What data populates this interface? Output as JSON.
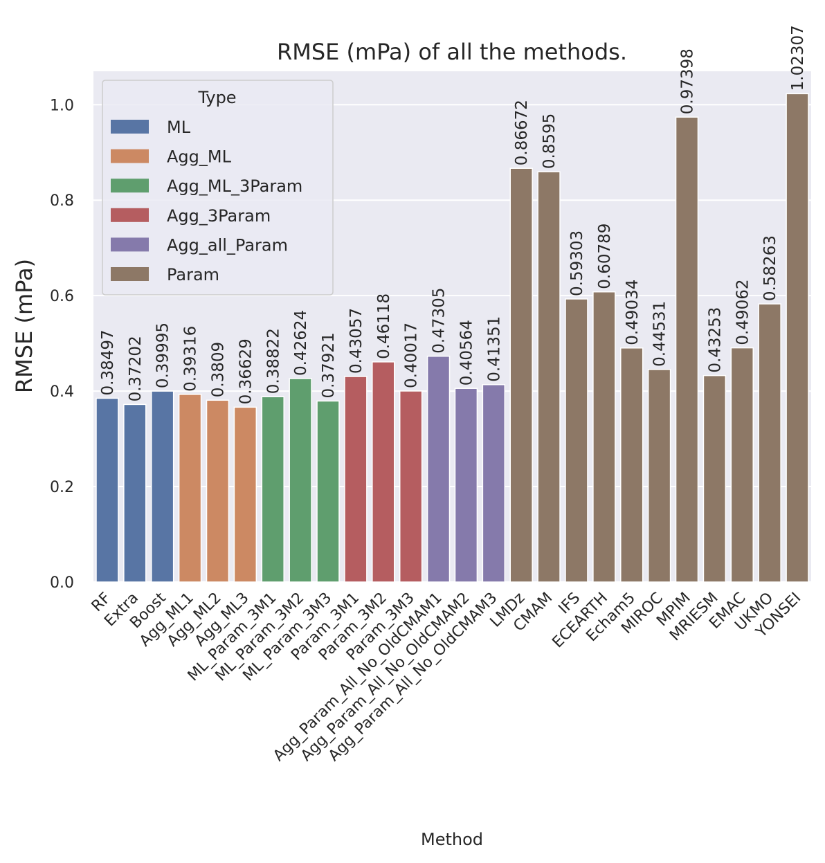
{
  "chart_data": {
    "type": "bar",
    "title": "RMSE (mPa) of all the methods.",
    "xlabel": "Method",
    "ylabel": "RMSE (mPa)",
    "ylim": [
      0,
      1.07
    ],
    "yticks": [
      0.0,
      0.2,
      0.4,
      0.6,
      0.8,
      1.0
    ],
    "ytick_labels": [
      "0.0",
      "0.2",
      "0.4",
      "0.6",
      "0.8",
      "1.0"
    ],
    "grid": true,
    "legend": {
      "title": "Type",
      "placement": "upper-left",
      "entries": [
        {
          "name": "ML",
          "color": "#5875a4"
        },
        {
          "name": "Agg_ML",
          "color": "#cc8963"
        },
        {
          "name": "Agg_ML_3Param",
          "color": "#5f9e6e"
        },
        {
          "name": "Agg_3Param",
          "color": "#b55d60"
        },
        {
          "name": "Agg_all_Param",
          "color": "#857aab"
        },
        {
          "name": "Param",
          "color": "#8d7866"
        }
      ]
    },
    "bars": [
      {
        "category": "RF",
        "value": 0.38497,
        "label": "0.38497",
        "type": "ML"
      },
      {
        "category": "Extra",
        "value": 0.37202,
        "label": "0.37202",
        "type": "ML"
      },
      {
        "category": "Boost",
        "value": 0.39995,
        "label": "0.39995",
        "type": "ML"
      },
      {
        "category": "Agg_ML1",
        "value": 0.39316,
        "label": "0.39316",
        "type": "Agg_ML"
      },
      {
        "category": "Agg_ML2",
        "value": 0.3809,
        "label": "0.3809",
        "type": "Agg_ML"
      },
      {
        "category": "Agg_ML3",
        "value": 0.36629,
        "label": "0.36629",
        "type": "Agg_ML"
      },
      {
        "category": "ML_Param_3M1",
        "value": 0.38822,
        "label": "0.38822",
        "type": "Agg_ML_3Param"
      },
      {
        "category": "ML_Param_3M2",
        "value": 0.42624,
        "label": "0.42624",
        "type": "Agg_ML_3Param"
      },
      {
        "category": "ML_Param_3M3",
        "value": 0.37921,
        "label": "0.37921",
        "type": "Agg_ML_3Param"
      },
      {
        "category": "Param_3M1",
        "value": 0.43057,
        "label": "0.43057",
        "type": "Agg_3Param"
      },
      {
        "category": "Param_3M2",
        "value": 0.46118,
        "label": "0.46118",
        "type": "Agg_3Param"
      },
      {
        "category": "Param_3M3",
        "value": 0.40017,
        "label": "0.40017",
        "type": "Agg_3Param"
      },
      {
        "category": "Agg_Param_All_No_OldCMAM1",
        "value": 0.47305,
        "label": "0.47305",
        "type": "Agg_all_Param"
      },
      {
        "category": "Agg_Param_All_No_OldCMAM2",
        "value": 0.40564,
        "label": "0.40564",
        "type": "Agg_all_Param"
      },
      {
        "category": "Agg_Param_All_No_OldCMAM3",
        "value": 0.41351,
        "label": "0.41351",
        "type": "Agg_all_Param"
      },
      {
        "category": "LMDz",
        "value": 0.86672,
        "label": "0.86672",
        "type": "Param"
      },
      {
        "category": "CMAM",
        "value": 0.8595,
        "label": "0.8595",
        "type": "Param"
      },
      {
        "category": "IFS",
        "value": 0.59303,
        "label": "0.59303",
        "type": "Param"
      },
      {
        "category": "ECEARTH",
        "value": 0.60789,
        "label": "0.60789",
        "type": "Param"
      },
      {
        "category": "Echam5",
        "value": 0.49034,
        "label": "0.49034",
        "type": "Param"
      },
      {
        "category": "MIROC",
        "value": 0.44531,
        "label": "0.44531",
        "type": "Param"
      },
      {
        "category": "MPIM",
        "value": 0.97398,
        "label": "0.97398",
        "type": "Param"
      },
      {
        "category": "MRIESM",
        "value": 0.43253,
        "label": "0.43253",
        "type": "Param"
      },
      {
        "category": "EMAC",
        "value": 0.49062,
        "label": "0.49062",
        "type": "Param"
      },
      {
        "category": "UKMO",
        "value": 0.58263,
        "label": "0.58263",
        "type": "Param"
      },
      {
        "category": "YONSEI",
        "value": 1.02307,
        "label": "1.02307",
        "type": "Param"
      }
    ]
  }
}
